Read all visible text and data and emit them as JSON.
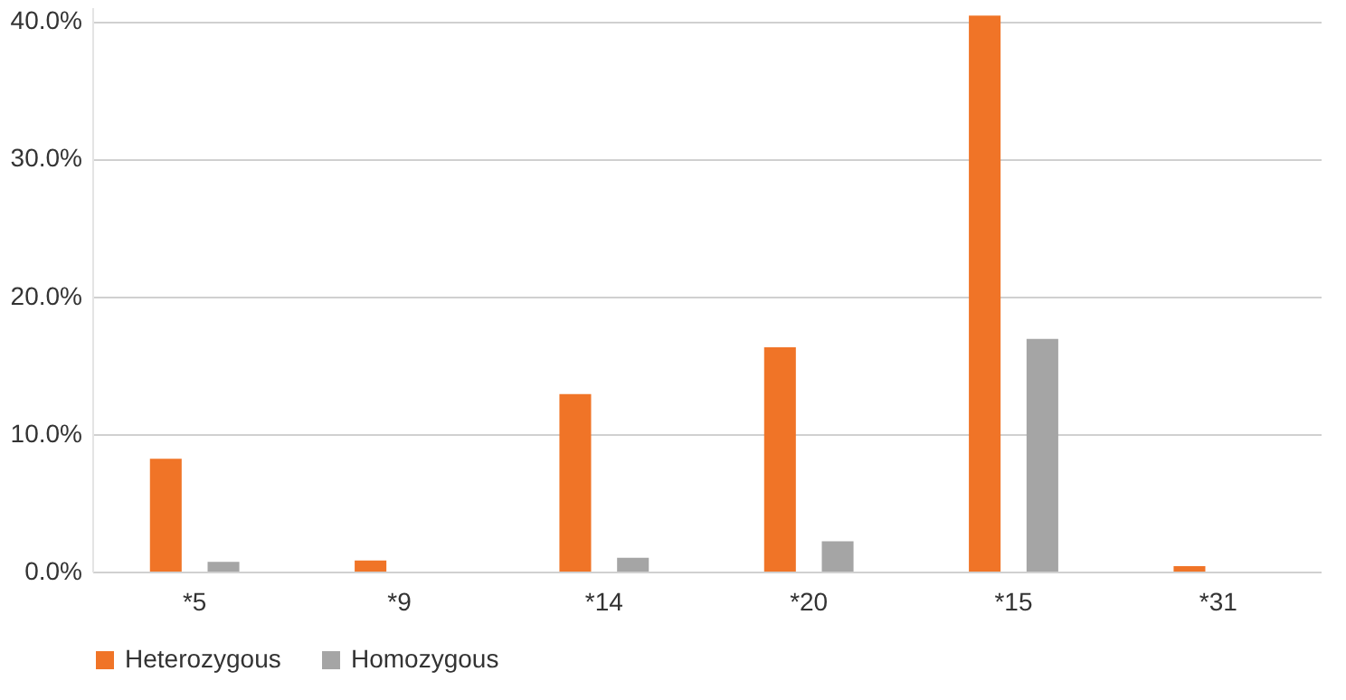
{
  "chart_data": {
    "type": "bar",
    "categories": [
      "*5",
      "*9",
      "*14",
      "*20",
      "*15",
      "*31"
    ],
    "series": [
      {
        "name": "Heterozygous",
        "color": "#f07427",
        "values": [
          8.2,
          0.8,
          12.9,
          16.3,
          40.4,
          0.4
        ]
      },
      {
        "name": "Homozygous",
        "color": "#a5a5a5",
        "values": [
          0.7,
          0,
          1.0,
          2.2,
          16.9,
          0
        ]
      }
    ],
    "ylim": [
      0,
      41
    ],
    "yticks": [
      {
        "value": 0,
        "label": "0.0%"
      },
      {
        "value": 10,
        "label": "10.0%"
      },
      {
        "value": 20,
        "label": "20.0%"
      },
      {
        "value": 30,
        "label": "30.0%"
      },
      {
        "value": 40,
        "label": "40.0%"
      }
    ],
    "grid": "y",
    "legend": "bottom"
  }
}
